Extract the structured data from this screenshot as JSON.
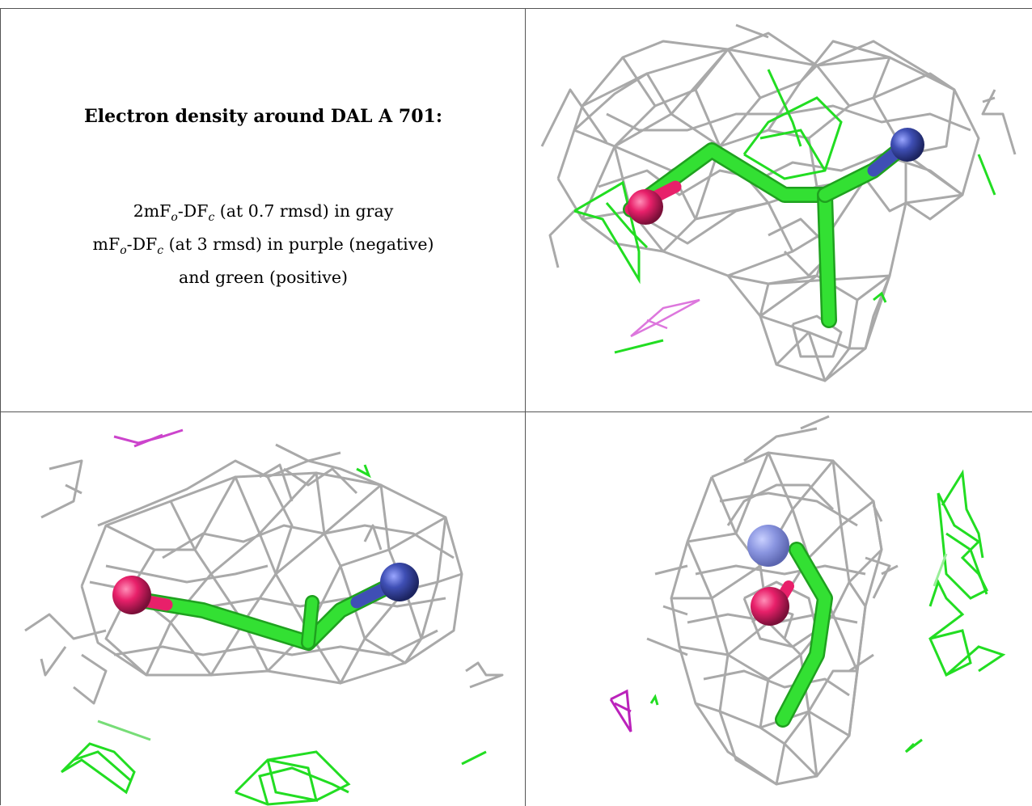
{
  "caption": {
    "title": "Electron density around DAL A 701:",
    "line1": {
      "pre": "2mF",
      "s1": "o",
      "mid": "-DF",
      "s2": "c",
      "post": " (at 0.7 rmsd) in gray"
    },
    "line2": {
      "pre": "mF",
      "s1": "o",
      "mid": "-DF",
      "s2": "c",
      "post": " (at 3 rmsd) in purple (negative)"
    },
    "line3": "and green (positive)"
  },
  "colors": {
    "mesh_gray": "#a9a9a9",
    "difference_negative": "#cc44cc",
    "difference_positive": "#22dd22",
    "carbon_stick": "#33e033",
    "oxygen_atom": "#e8206a",
    "nitrogen_atom": "#3f4fb5"
  },
  "views": [
    "top-right",
    "bottom-left",
    "bottom-right"
  ]
}
